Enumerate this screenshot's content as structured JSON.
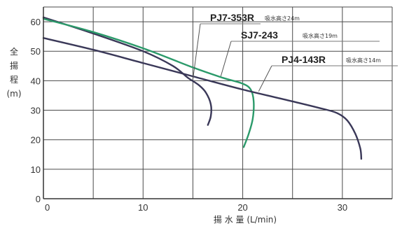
{
  "chart_data": {
    "type": "line",
    "xlabel": "揚 水 量 (L/min)",
    "ylabel": "全 揚 程 (m)",
    "ylabel_chars": [
      "全",
      "揚",
      "程",
      "(m)"
    ],
    "xlim": [
      0,
      35
    ],
    "ylim": [
      0,
      65
    ],
    "x_ticks": [
      "0",
      "10",
      "20",
      "30"
    ],
    "y_ticks": [
      "0",
      "10",
      "20",
      "30",
      "40",
      "50",
      "60"
    ],
    "grid": true,
    "series": [
      {
        "name": "PJ7-353R",
        "note": "吸水高さ24m",
        "color": "#3a3858",
        "points": [
          [
            0,
            61.5
          ],
          [
            5,
            56
          ],
          [
            10,
            50
          ],
          [
            13,
            45
          ],
          [
            14.5,
            41
          ],
          [
            15.6,
            38.5
          ],
          [
            16.3,
            36
          ],
          [
            16.8,
            32
          ],
          [
            16.8,
            28
          ],
          [
            16.5,
            25
          ]
        ]
      },
      {
        "name": "SJ7-243",
        "note": "吸水高さ19m",
        "color": "#2b9a6a",
        "points": [
          [
            0,
            61
          ],
          [
            5,
            56.5
          ],
          [
            10,
            51
          ],
          [
            15,
            44.5
          ],
          [
            18,
            41
          ],
          [
            20,
            39
          ],
          [
            20.8,
            37
          ],
          [
            21.1,
            33
          ],
          [
            21,
            27
          ],
          [
            20.6,
            22
          ],
          [
            20.1,
            17.5
          ]
        ]
      },
      {
        "name": "PJ4-143R",
        "note": "吸水高さ14m",
        "color": "#3a3858",
        "points": [
          [
            0,
            54.5
          ],
          [
            5,
            50.5
          ],
          [
            10,
            46
          ],
          [
            15,
            41.5
          ],
          [
            20,
            37
          ],
          [
            25,
            33
          ],
          [
            28,
            30.5
          ],
          [
            29.5,
            29
          ],
          [
            30.5,
            26.5
          ],
          [
            31.3,
            22
          ],
          [
            31.8,
            17
          ],
          [
            31.9,
            13.5
          ]
        ]
      }
    ]
  }
}
